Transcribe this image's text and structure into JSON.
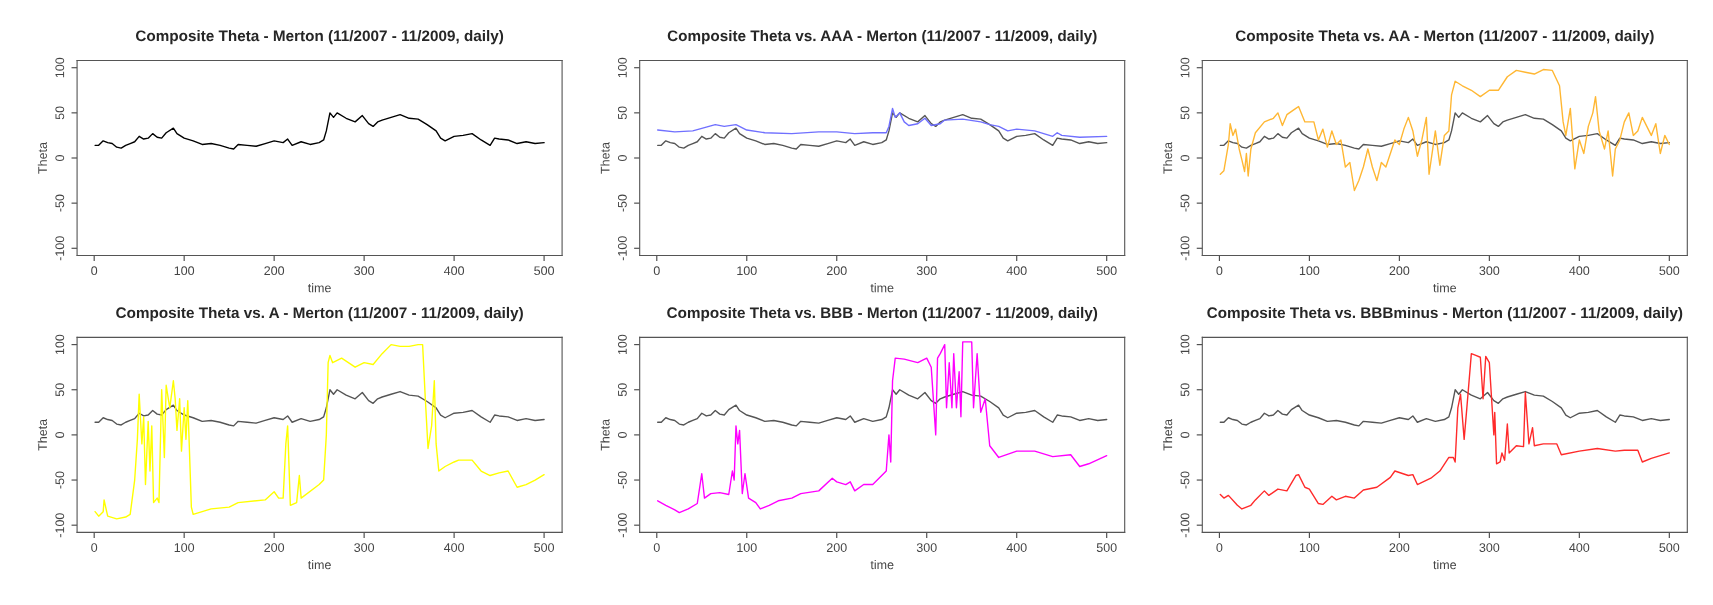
{
  "chart_data": [
    {
      "type": "line",
      "title": "Composite Theta - Merton (11/2007 - 11/2009, daily)",
      "xlabel": "time",
      "ylabel": "Theta",
      "xlim": [
        -19,
        520
      ],
      "ylim": [
        -108,
        108
      ],
      "xticks": [
        0,
        100,
        200,
        300,
        400,
        500
      ],
      "yticks": [
        -100,
        -50,
        0,
        50,
        100
      ],
      "grid": false,
      "legend": false,
      "line_style": "solid",
      "marker": "none",
      "series": [
        {
          "color": "#000000",
          "x": [
            1,
            5,
            10,
            15,
            20,
            25,
            30,
            35,
            40,
            45,
            50,
            55,
            60,
            65,
            70,
            75,
            80,
            88,
            92,
            100,
            110,
            120,
            130,
            140,
            150,
            155,
            160,
            170,
            180,
            190,
            200,
            210,
            215,
            220,
            230,
            240,
            250,
            255,
            258,
            262,
            266,
            270,
            280,
            290,
            298,
            305,
            310,
            315,
            320,
            330,
            340,
            350,
            360,
            370,
            380,
            385,
            390,
            400,
            410,
            420,
            430,
            440,
            445,
            450,
            460,
            470,
            480,
            490,
            500
          ],
          "values": [
            14,
            14,
            19,
            17,
            16,
            12,
            11,
            14,
            16,
            18,
            24,
            21,
            22,
            27,
            23,
            22,
            28,
            33,
            27,
            22,
            19,
            15,
            16,
            14,
            11,
            10,
            15,
            14,
            13,
            16,
            19,
            17,
            21,
            14,
            18,
            15,
            17,
            20,
            30,
            50,
            45,
            50,
            44,
            40,
            47,
            38,
            35,
            40,
            42,
            45,
            48,
            44,
            43,
            37,
            30,
            22,
            19,
            24,
            25,
            27,
            20,
            14,
            22,
            21,
            20,
            16,
            18,
            16,
            17
          ]
        }
      ]
    },
    {
      "type": "line",
      "title": "Composite Theta vs. AAA - Merton (11/2007 - 11/2009, daily)",
      "xlabel": "time",
      "ylabel": "Theta",
      "xlim": [
        -19,
        520
      ],
      "ylim": [
        -108,
        108
      ],
      "xticks": [
        0,
        100,
        200,
        300,
        400,
        500
      ],
      "yticks": [
        -100,
        -50,
        0,
        50,
        100
      ],
      "grid": false,
      "legend": false,
      "line_style": "solid",
      "marker": "none",
      "series": [
        {
          "color": "#555555",
          "x": [
            1,
            5,
            10,
            15,
            20,
            25,
            30,
            35,
            40,
            45,
            50,
            55,
            60,
            65,
            70,
            75,
            80,
            88,
            92,
            100,
            110,
            120,
            130,
            140,
            150,
            155,
            160,
            170,
            180,
            190,
            200,
            210,
            215,
            220,
            230,
            240,
            250,
            255,
            258,
            262,
            266,
            270,
            280,
            290,
            298,
            305,
            310,
            315,
            320,
            330,
            340,
            350,
            360,
            370,
            380,
            385,
            390,
            400,
            410,
            420,
            430,
            440,
            445,
            450,
            460,
            470,
            480,
            490,
            500
          ],
          "values": [
            14,
            14,
            19,
            17,
            16,
            12,
            11,
            14,
            16,
            18,
            24,
            21,
            22,
            27,
            23,
            22,
            28,
            33,
            27,
            22,
            19,
            15,
            16,
            14,
            11,
            10,
            15,
            14,
            13,
            16,
            19,
            17,
            21,
            14,
            18,
            15,
            17,
            20,
            30,
            50,
            45,
            50,
            44,
            40,
            47,
            38,
            35,
            40,
            42,
            45,
            48,
            44,
            43,
            37,
            30,
            22,
            19,
            24,
            25,
            27,
            20,
            14,
            22,
            21,
            20,
            16,
            18,
            16,
            17
          ]
        },
        {
          "color": "#7070ff",
          "x": [
            1,
            20,
            40,
            65,
            75,
            88,
            100,
            120,
            150,
            180,
            200,
            220,
            240,
            255,
            258,
            262,
            265,
            270,
            275,
            280,
            290,
            298,
            305,
            315,
            320,
            340,
            360,
            370,
            380,
            390,
            400,
            420,
            440,
            445,
            450,
            470,
            500
          ],
          "values": [
            31,
            29,
            30,
            37,
            35,
            37,
            31,
            28,
            27,
            29,
            29,
            27,
            28,
            28,
            35,
            55,
            45,
            50,
            40,
            36,
            38,
            44,
            36,
            38,
            42,
            43,
            40,
            37,
            35,
            30,
            32,
            30,
            24,
            28,
            25,
            23,
            24
          ]
        }
      ]
    },
    {
      "type": "line",
      "title": "Composite Theta vs. AA - Merton (11/2007 - 11/2009, daily)",
      "xlabel": "time",
      "ylabel": "Theta",
      "xlim": [
        -19,
        520
      ],
      "ylim": [
        -108,
        108
      ],
      "xticks": [
        0,
        100,
        200,
        300,
        400,
        500
      ],
      "yticks": [
        -100,
        -50,
        0,
        50,
        100
      ],
      "grid": false,
      "legend": false,
      "line_style": "solid",
      "marker": "none",
      "series": [
        {
          "color": "#555555",
          "x": [
            1,
            5,
            10,
            15,
            20,
            25,
            30,
            35,
            40,
            45,
            50,
            55,
            60,
            65,
            70,
            75,
            80,
            88,
            92,
            100,
            110,
            120,
            130,
            140,
            150,
            155,
            160,
            170,
            180,
            190,
            200,
            210,
            215,
            220,
            230,
            240,
            250,
            255,
            258,
            262,
            266,
            270,
            280,
            290,
            298,
            305,
            310,
            315,
            320,
            330,
            340,
            350,
            360,
            370,
            380,
            385,
            390,
            400,
            410,
            420,
            430,
            440,
            445,
            450,
            460,
            470,
            480,
            490,
            500
          ],
          "values": [
            14,
            14,
            19,
            17,
            16,
            12,
            11,
            14,
            16,
            18,
            24,
            21,
            22,
            27,
            23,
            22,
            28,
            33,
            27,
            22,
            19,
            15,
            16,
            14,
            11,
            10,
            15,
            14,
            13,
            16,
            19,
            17,
            21,
            14,
            18,
            15,
            17,
            20,
            30,
            50,
            45,
            50,
            44,
            40,
            47,
            38,
            35,
            40,
            42,
            45,
            48,
            44,
            43,
            37,
            30,
            22,
            19,
            24,
            25,
            27,
            20,
            14,
            22,
            21,
            20,
            16,
            18,
            16,
            17
          ]
        },
        {
          "color": "#ffb733",
          "x": [
            1,
            5,
            10,
            12,
            15,
            18,
            22,
            25,
            28,
            30,
            32,
            35,
            40,
            50,
            60,
            65,
            70,
            75,
            85,
            88,
            95,
            105,
            110,
            115,
            120,
            125,
            130,
            135,
            140,
            145,
            150,
            155,
            160,
            165,
            170,
            175,
            180,
            185,
            190,
            195,
            200,
            205,
            210,
            215,
            220,
            225,
            230,
            233,
            240,
            245,
            250,
            255,
            258,
            262,
            270,
            280,
            290,
            300,
            310,
            320,
            330,
            340,
            350,
            360,
            370,
            378,
            382,
            385,
            390,
            395,
            400,
            405,
            410,
            415,
            418,
            422,
            428,
            432,
            437,
            440,
            445,
            450,
            455,
            460,
            465,
            470,
            475,
            480,
            485,
            490,
            495,
            500
          ],
          "values": [
            -18,
            -14,
            15,
            38,
            25,
            32,
            10,
            -2,
            -15,
            5,
            -20,
            10,
            28,
            40,
            44,
            50,
            36,
            48,
            55,
            57,
            40,
            40,
            20,
            32,
            12,
            30,
            15,
            20,
            -10,
            -5,
            -36,
            -25,
            -10,
            10,
            -10,
            -25,
            -5,
            -10,
            5,
            20,
            15,
            32,
            45,
            30,
            2,
            20,
            45,
            -18,
            30,
            -8,
            25,
            30,
            70,
            85,
            80,
            75,
            68,
            75,
            75,
            90,
            97,
            95,
            93,
            98,
            97,
            80,
            40,
            25,
            55,
            -12,
            20,
            5,
            35,
            50,
            68,
            30,
            10,
            30,
            -20,
            10,
            20,
            40,
            50,
            25,
            30,
            45,
            35,
            25,
            38,
            5,
            25,
            15
          ]
        }
      ]
    },
    {
      "type": "line",
      "title": "Composite Theta vs. A - Merton (11/2007 - 11/2009, daily)",
      "xlabel": "time",
      "ylabel": "Theta",
      "xlim": [
        -19,
        520
      ],
      "ylim": [
        -108,
        108
      ],
      "xticks": [
        0,
        100,
        200,
        300,
        400,
        500
      ],
      "yticks": [
        -100,
        -50,
        0,
        50,
        100
      ],
      "grid": false,
      "legend": false,
      "line_style": "solid",
      "marker": "none",
      "series": [
        {
          "color": "#555555",
          "x": [
            1,
            5,
            10,
            15,
            20,
            25,
            30,
            35,
            40,
            45,
            50,
            55,
            60,
            65,
            70,
            75,
            80,
            88,
            92,
            100,
            110,
            120,
            130,
            140,
            150,
            155,
            160,
            170,
            180,
            190,
            200,
            210,
            215,
            220,
            230,
            240,
            250,
            255,
            258,
            262,
            266,
            270,
            280,
            290,
            298,
            305,
            310,
            315,
            320,
            330,
            340,
            350,
            360,
            370,
            380,
            385,
            390,
            400,
            410,
            420,
            430,
            440,
            445,
            450,
            460,
            470,
            480,
            490,
            500
          ],
          "values": [
            14,
            14,
            19,
            17,
            16,
            12,
            11,
            14,
            16,
            18,
            24,
            21,
            22,
            27,
            23,
            22,
            28,
            33,
            27,
            22,
            19,
            15,
            16,
            14,
            11,
            10,
            15,
            14,
            13,
            16,
            19,
            17,
            21,
            14,
            18,
            15,
            17,
            20,
            30,
            50,
            45,
            50,
            44,
            40,
            47,
            38,
            35,
            40,
            42,
            45,
            48,
            44,
            43,
            37,
            30,
            22,
            19,
            24,
            25,
            27,
            20,
            14,
            22,
            21,
            20,
            16,
            18,
            16,
            17
          ]
        },
        {
          "color": "#ffff00",
          "x": [
            1,
            5,
            10,
            11,
            15,
            25,
            35,
            40,
            45,
            48,
            50,
            53,
            55,
            57,
            60,
            62,
            64,
            66,
            70,
            72,
            75,
            78,
            80,
            84,
            88,
            90,
            92,
            95,
            97,
            100,
            102,
            104,
            108,
            110,
            120,
            130,
            150,
            160,
            190,
            200,
            205,
            210,
            213,
            215,
            218,
            225,
            228,
            230,
            250,
            255,
            258,
            260,
            262,
            265,
            275,
            290,
            300,
            310,
            320,
            330,
            340,
            350,
            360,
            365,
            368,
            371,
            375,
            378,
            380,
            383,
            390,
            400,
            405,
            420,
            430,
            440,
            450,
            460,
            470,
            480,
            490,
            500
          ],
          "values": [
            -85,
            -90,
            -85,
            -72,
            -90,
            -93,
            -91,
            -88,
            -50,
            -5,
            45,
            -10,
            20,
            -55,
            15,
            -40,
            10,
            -75,
            -70,
            -75,
            50,
            -25,
            55,
            30,
            60,
            40,
            5,
            40,
            -18,
            30,
            -5,
            38,
            -80,
            -88,
            -85,
            -82,
            -80,
            -75,
            -72,
            -63,
            -70,
            -70,
            -10,
            10,
            -78,
            -75,
            -45,
            -70,
            -55,
            -50,
            0,
            80,
            88,
            80,
            85,
            75,
            80,
            78,
            90,
            100,
            98,
            98,
            100,
            100,
            40,
            -15,
            10,
            60,
            -10,
            -40,
            -35,
            -30,
            -28,
            -28,
            -40,
            -45,
            -42,
            -40,
            -58,
            -55,
            -50,
            -44
          ]
        }
      ]
    },
    {
      "type": "line",
      "title": "Composite Theta vs. BBB - Merton (11/2007 - 11/2009, daily)",
      "xlabel": "time",
      "ylabel": "Theta",
      "xlim": [
        -19,
        520
      ],
      "ylim": [
        -108,
        108
      ],
      "xticks": [
        0,
        100,
        200,
        300,
        400,
        500
      ],
      "yticks": [
        -100,
        -50,
        0,
        50,
        100
      ],
      "grid": false,
      "legend": false,
      "line_style": "solid",
      "marker": "none",
      "series": [
        {
          "color": "#555555",
          "x": [
            1,
            5,
            10,
            15,
            20,
            25,
            30,
            35,
            40,
            45,
            50,
            55,
            60,
            65,
            70,
            75,
            80,
            88,
            92,
            100,
            110,
            120,
            130,
            140,
            150,
            155,
            160,
            170,
            180,
            190,
            200,
            210,
            215,
            220,
            230,
            240,
            250,
            255,
            258,
            262,
            266,
            270,
            280,
            290,
            298,
            305,
            310,
            315,
            320,
            330,
            340,
            350,
            360,
            370,
            380,
            385,
            390,
            400,
            410,
            420,
            430,
            440,
            445,
            450,
            460,
            470,
            480,
            490,
            500
          ],
          "values": [
            14,
            14,
            19,
            17,
            16,
            12,
            11,
            14,
            16,
            18,
            24,
            21,
            22,
            27,
            23,
            22,
            28,
            33,
            27,
            22,
            19,
            15,
            16,
            14,
            11,
            10,
            15,
            14,
            13,
            16,
            19,
            17,
            21,
            14,
            18,
            15,
            17,
            20,
            30,
            50,
            45,
            50,
            44,
            40,
            47,
            38,
            35,
            40,
            42,
            45,
            48,
            44,
            43,
            37,
            30,
            22,
            19,
            24,
            25,
            27,
            20,
            14,
            22,
            21,
            20,
            16,
            18,
            16,
            17
          ]
        },
        {
          "color": "#ff00ff",
          "x": [
            1,
            10,
            20,
            25,
            35,
            45,
            50,
            53,
            60,
            70,
            80,
            84,
            86,
            88,
            90,
            92,
            95,
            98,
            102,
            110,
            115,
            125,
            135,
            150,
            160,
            180,
            195,
            200,
            210,
            215,
            220,
            230,
            240,
            250,
            255,
            258,
            260,
            262,
            265,
            275,
            290,
            300,
            305,
            310,
            312,
            315,
            320,
            322,
            325,
            328,
            330,
            333,
            336,
            338,
            340,
            345,
            350,
            352,
            356,
            360,
            365,
            370,
            380,
            400,
            420,
            440,
            460,
            470,
            480,
            500
          ],
          "values": [
            -73,
            -78,
            -83,
            -86,
            -82,
            -76,
            -43,
            -70,
            -65,
            -64,
            -66,
            -40,
            -50,
            10,
            -10,
            5,
            -65,
            -43,
            -70,
            -75,
            -82,
            -78,
            -73,
            -70,
            -65,
            -62,
            -48,
            -52,
            -55,
            -52,
            -62,
            -55,
            -55,
            -45,
            -40,
            0,
            -30,
            60,
            85,
            84,
            80,
            85,
            75,
            0,
            85,
            90,
            100,
            30,
            80,
            30,
            90,
            30,
            70,
            20,
            103,
            103,
            103,
            30,
            90,
            25,
            40,
            -12,
            -25,
            -18,
            -18,
            -24,
            -22,
            -35,
            -32,
            -23
          ]
        }
      ]
    },
    {
      "type": "line",
      "title": "Composite Theta vs. BBBminus - Merton (11/2007 - 11/2009, daily)",
      "xlabel": "time",
      "ylabel": "Theta",
      "xlim": [
        -19,
        520
      ],
      "ylim": [
        -108,
        108
      ],
      "xticks": [
        0,
        100,
        200,
        300,
        400,
        500
      ],
      "yticks": [
        -100,
        -50,
        0,
        50,
        100
      ],
      "grid": false,
      "legend": false,
      "line_style": "solid",
      "marker": "none",
      "series": [
        {
          "color": "#555555",
          "x": [
            1,
            5,
            10,
            15,
            20,
            25,
            30,
            35,
            40,
            45,
            50,
            55,
            60,
            65,
            70,
            75,
            80,
            88,
            92,
            100,
            110,
            120,
            130,
            140,
            150,
            155,
            160,
            170,
            180,
            190,
            200,
            210,
            215,
            220,
            230,
            240,
            250,
            255,
            258,
            262,
            266,
            270,
            280,
            290,
            298,
            305,
            310,
            315,
            320,
            330,
            340,
            350,
            360,
            370,
            380,
            385,
            390,
            400,
            410,
            420,
            430,
            440,
            445,
            450,
            460,
            470,
            480,
            490,
            500
          ],
          "values": [
            14,
            14,
            19,
            17,
            16,
            12,
            11,
            14,
            16,
            18,
            24,
            21,
            22,
            27,
            23,
            22,
            28,
            33,
            27,
            22,
            19,
            15,
            16,
            14,
            11,
            10,
            15,
            14,
            13,
            16,
            19,
            17,
            21,
            14,
            18,
            15,
            17,
            20,
            30,
            50,
            45,
            50,
            44,
            40,
            47,
            38,
            35,
            40,
            42,
            45,
            48,
            44,
            43,
            37,
            30,
            22,
            19,
            24,
            25,
            27,
            20,
            14,
            22,
            21,
            20,
            16,
            18,
            16,
            17
          ]
        },
        {
          "color": "#ff2a2a",
          "x": [
            1,
            5,
            10,
            20,
            25,
            35,
            40,
            50,
            55,
            65,
            75,
            85,
            88,
            95,
            100,
            110,
            115,
            125,
            130,
            140,
            150,
            160,
            175,
            190,
            195,
            210,
            215,
            220,
            235,
            245,
            255,
            260,
            262,
            265,
            268,
            272,
            275,
            280,
            285,
            290,
            293,
            296,
            300,
            305,
            306,
            308,
            312,
            314,
            317,
            320,
            322,
            330,
            338,
            340,
            344,
            348,
            350,
            360,
            375,
            380,
            400,
            420,
            440,
            450,
            465,
            470,
            480,
            500
          ],
          "values": [
            -66,
            -70,
            -67,
            -78,
            -82,
            -78,
            -72,
            -62,
            -67,
            -60,
            -62,
            -45,
            -44,
            -58,
            -60,
            -76,
            -77,
            -68,
            -72,
            -68,
            -70,
            -61,
            -58,
            -47,
            -40,
            -45,
            -44,
            -55,
            -48,
            -40,
            -25,
            -25,
            -30,
            30,
            45,
            -5,
            30,
            90,
            88,
            86,
            40,
            87,
            80,
            0,
            25,
            -32,
            -30,
            -20,
            -28,
            12,
            -20,
            -12,
            -13,
            47,
            -10,
            8,
            -12,
            -10,
            -10,
            -22,
            -18,
            -15,
            -18,
            -17,
            -17,
            -30,
            -26,
            -20
          ]
        }
      ]
    }
  ]
}
